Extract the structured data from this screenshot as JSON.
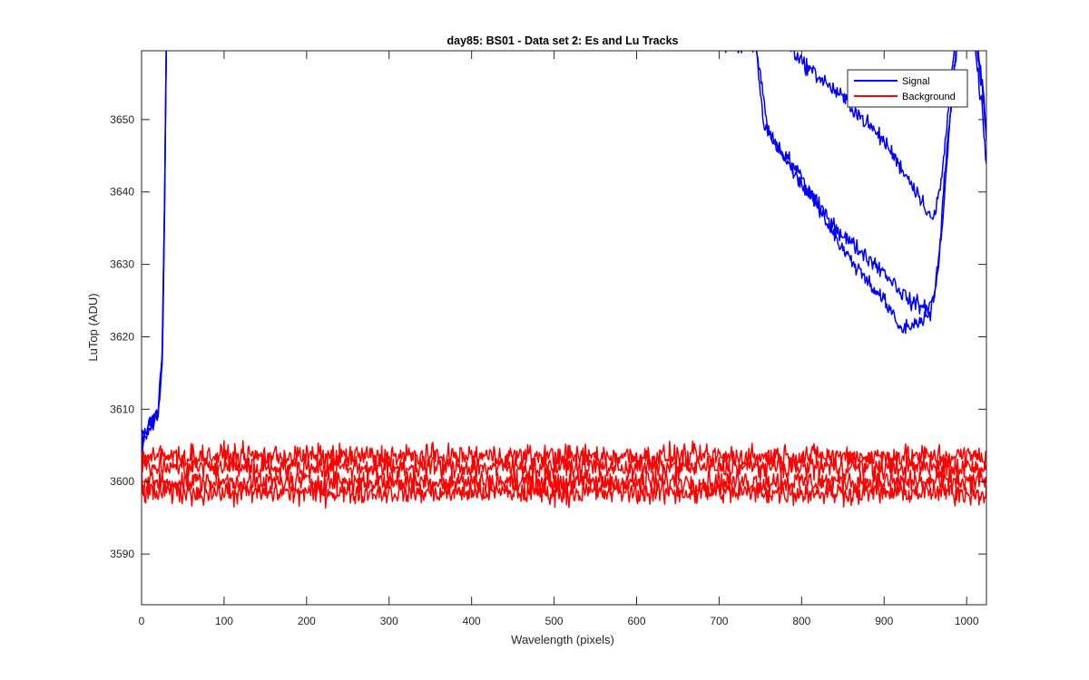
{
  "chart_data": {
    "type": "line",
    "title": "day85: BS01 - Data set 2: Es and Lu Tracks",
    "xlabel": "Wavelength (pixels)",
    "ylabel": "LuTop (ADU)",
    "xlim": [
      0,
      1024
    ],
    "ylim": [
      3583,
      3659.5
    ],
    "xticks": [
      0,
      100,
      200,
      300,
      400,
      500,
      600,
      700,
      800,
      900,
      1000
    ],
    "yticks": [
      3590,
      3600,
      3610,
      3620,
      3630,
      3640,
      3650
    ],
    "grid": false,
    "legend": {
      "location": "top-right",
      "entries": [
        "Signal",
        "Background"
      ]
    },
    "series_colors": {
      "Signal": "#0000ff",
      "Background": "#ff0000"
    },
    "series": [
      {
        "name": "Signal",
        "x": [
          0,
          10,
          20,
          25,
          28,
          30,
          32,
          750,
          800,
          850,
          900,
          940,
          960,
          970,
          985,
          1000,
          1010,
          1020,
          1024
        ],
        "values": [
          3606,
          3608,
          3610,
          3618,
          3640,
          3662,
          3670,
          3666,
          3658,
          3653,
          3647,
          3640,
          3636,
          3642,
          3660,
          3665,
          3660,
          3650,
          3643
        ]
      },
      {
        "name": "Signal",
        "x": [
          0,
          10,
          20,
          25,
          28,
          30,
          32,
          745,
          760,
          800,
          850,
          900,
          930,
          950,
          960,
          970,
          980,
          990,
          1000,
          1010,
          1020,
          1024
        ],
        "values": [
          3605,
          3607,
          3609,
          3616,
          3638,
          3660,
          3668,
          3660,
          3648,
          3641,
          3634,
          3629,
          3625,
          3624,
          3625,
          3635,
          3650,
          3664,
          3668,
          3663,
          3654,
          3648
        ]
      },
      {
        "name": "Signal",
        "x": [
          0,
          10,
          20,
          25,
          28,
          30,
          32,
          740,
          755,
          800,
          850,
          900,
          920,
          940,
          955,
          965,
          975,
          990,
          1000,
          1010,
          1020,
          1024
        ],
        "values": [
          3606,
          3608,
          3609,
          3617,
          3639,
          3661,
          3669,
          3664,
          3649,
          3642,
          3632,
          3625,
          3621,
          3622,
          3623,
          3628,
          3645,
          3662,
          3667,
          3662,
          3653,
          3647
        ]
      },
      {
        "name": "Background",
        "x": [
          0,
          200,
          400,
          600,
          800,
          1024
        ],
        "values": [
          3603.5,
          3603.5,
          3603.5,
          3603.5,
          3603.5,
          3603.5
        ]
      },
      {
        "name": "Background",
        "x": [
          0,
          200,
          400,
          600,
          800,
          1024
        ],
        "values": [
          3600,
          3600,
          3600,
          3600,
          3600,
          3600
        ]
      },
      {
        "name": "Background",
        "x": [
          0,
          200,
          400,
          600,
          800,
          1024
        ],
        "values": [
          3598.5,
          3598.5,
          3598.5,
          3598.5,
          3598.5,
          3598.5
        ]
      },
      {
        "name": "Background",
        "x": [
          0,
          200,
          400,
          600,
          800,
          1024
        ],
        "values": [
          3602,
          3602,
          3602,
          3602,
          3602,
          3602
        ]
      }
    ]
  }
}
